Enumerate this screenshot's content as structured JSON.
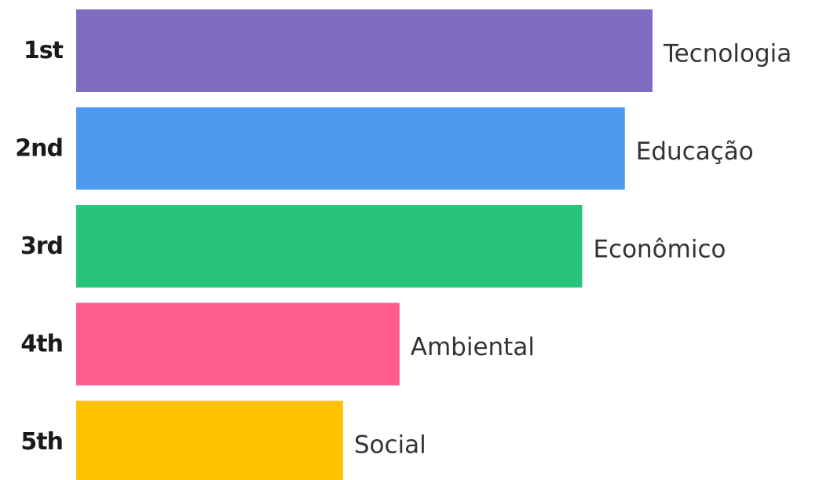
{
  "chart_data": {
    "type": "bar",
    "orientation": "horizontal",
    "categories": [
      "Tecnologia",
      "Educação",
      "Econômico",
      "Ambiental",
      "Social"
    ],
    "ranks": [
      "1st",
      "2nd",
      "3rd",
      "4th",
      "5th"
    ],
    "values": [
      100,
      95.2,
      87.8,
      56.1,
      46.3
    ],
    "colors": [
      "#7f6bbf",
      "#4e9af1",
      "#29c47c",
      "#fd5c8c",
      "#ffc200"
    ],
    "xlim": [
      0,
      100
    ],
    "grid": false,
    "legend": "none"
  }
}
